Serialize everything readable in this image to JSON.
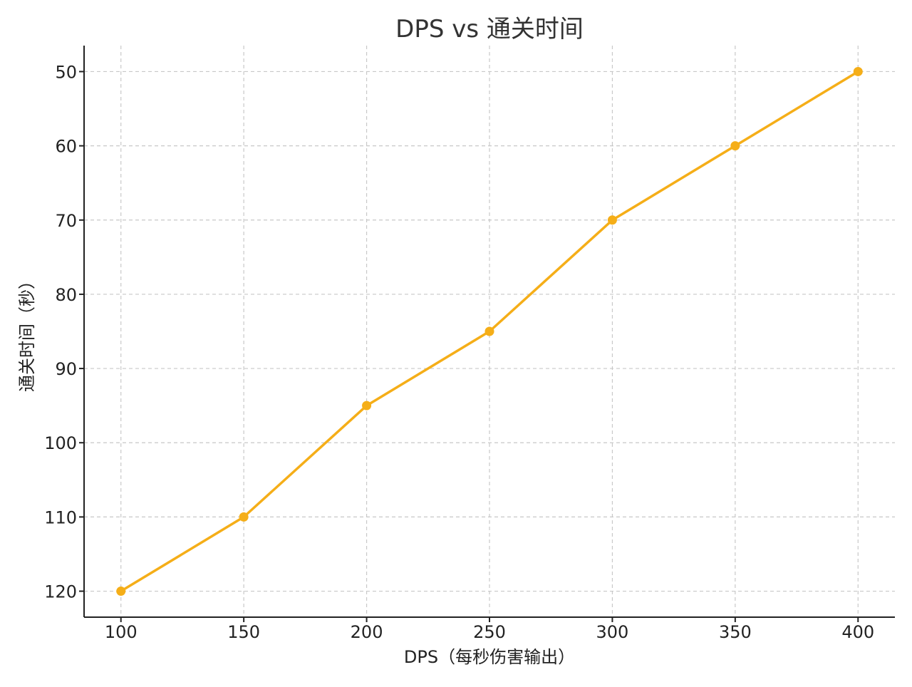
{
  "chart_data": {
    "type": "line",
    "title": "DPS vs 通关时间",
    "xlabel": "DPS（每秒伤害输出）",
    "ylabel": "通关时间（秒）",
    "x": [
      100,
      150,
      200,
      250,
      300,
      350,
      400
    ],
    "series": [
      {
        "values": [
          120,
          110,
          95,
          85,
          70,
          60,
          50
        ],
        "color": "#F5AE18"
      }
    ],
    "x_ticks": [
      100,
      150,
      200,
      250,
      300,
      350,
      400
    ],
    "y_ticks": [
      50,
      60,
      70,
      80,
      90,
      100,
      110,
      120
    ],
    "xlim": [
      85,
      415
    ],
    "ylim": [
      46.5,
      123.5
    ],
    "y_inverted": true,
    "grid": true,
    "marker": "circle"
  }
}
